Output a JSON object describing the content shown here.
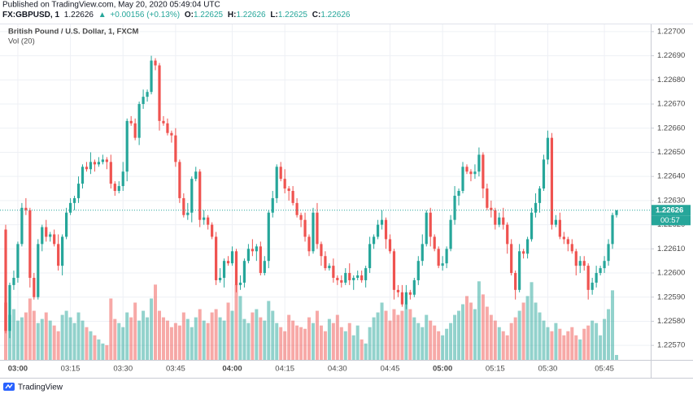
{
  "chart_data": {
    "type": "candlestick",
    "header": {
      "published": "Published on TradingView.com, May 20, 2020 05:49:04 UTC",
      "symbol": "FX:GBPUSD, 1",
      "last": "1.22626",
      "change": "+0.00156 (+0.13%)",
      "ohlc": [
        {
          "label": "O:",
          "value": "1.22625"
        },
        {
          "label": "H:",
          "value": "1.22626"
        },
        {
          "label": "L:",
          "value": "1.22625"
        },
        {
          "label": "C:",
          "value": "1.22626"
        }
      ]
    },
    "title": "British Pound / U.S. Dollar, 1, FXCM",
    "volume_title": "Vol (20)",
    "footer": "TradingView",
    "countdown": "00:57",
    "last_price": 1.22626,
    "up_color": "#26a69a",
    "down_color": "#ef5350",
    "grid": true,
    "ylim": [
      1.22564,
      1.22703
    ],
    "yticks": [
      {
        "value": 1.2257,
        "label": "1.22570"
      },
      {
        "value": 1.2258,
        "label": "1.22580"
      },
      {
        "value": 1.2259,
        "label": "1.22590"
      },
      {
        "value": 1.226,
        "label": "1.22600"
      },
      {
        "value": 1.2261,
        "label": "1.22610"
      },
      {
        "value": 1.2262,
        "label": "1.22620"
      },
      {
        "value": 1.2263,
        "label": "1.22630"
      },
      {
        "value": 1.2264,
        "label": "1.22640"
      },
      {
        "value": 1.2265,
        "label": "1.22650"
      },
      {
        "value": 1.2266,
        "label": "1.22660"
      },
      {
        "value": 1.2267,
        "label": "1.22670"
      },
      {
        "value": 1.2268,
        "label": "1.22680"
      },
      {
        "value": 1.2269,
        "label": "1.22690"
      },
      {
        "value": 1.227,
        "label": "1.22700"
      }
    ],
    "volume_lim": [
      0,
      410
    ],
    "categories": [
      null,
      null,
      null,
      "03:00",
      null,
      null,
      null,
      null,
      null,
      null,
      null,
      null,
      null,
      null,
      null,
      null,
      "03:15",
      null,
      null,
      null,
      null,
      null,
      null,
      null,
      null,
      null,
      null,
      null,
      null,
      "03:30",
      null,
      null,
      null,
      null,
      null,
      null,
      null,
      null,
      null,
      null,
      null,
      null,
      "03:45",
      null,
      null,
      null,
      null,
      null,
      null,
      null,
      null,
      null,
      null,
      null,
      null,
      null,
      "04:00",
      null,
      null,
      null,
      null,
      null,
      null,
      null,
      null,
      null,
      null,
      null,
      null,
      "04:15",
      null,
      null,
      null,
      null,
      null,
      null,
      null,
      null,
      null,
      null,
      null,
      null,
      "04:30",
      null,
      null,
      null,
      null,
      null,
      null,
      null,
      null,
      null,
      null,
      null,
      null,
      "04:45",
      null,
      null,
      null,
      null,
      null,
      null,
      null,
      null,
      null,
      null,
      null,
      null,
      "05:00",
      null,
      null,
      null,
      null,
      null,
      null,
      null,
      null,
      null,
      null,
      null,
      null,
      "05:15",
      null,
      null,
      null,
      null,
      null,
      null,
      null,
      null,
      null,
      null,
      null,
      null,
      "05:30",
      null,
      null,
      null,
      null,
      null,
      null,
      null,
      null,
      null,
      null,
      null,
      null,
      null,
      "05:45",
      null,
      null,
      null
    ],
    "open": [
      1.22618,
      1.22576,
      1.22595,
      1.22598,
      1.22612,
      1.22627,
      1.22626,
      1.22598,
      1.2259,
      1.22612,
      1.22619,
      1.22615,
      1.22616,
      1.22612,
      1.22603,
      1.22615,
      1.22625,
      1.22629,
      1.22631,
      1.22637,
      1.22644,
      1.22643,
      1.22646,
      1.22645,
      1.22646,
      1.22647,
      1.22646,
      1.22637,
      1.22634,
      1.22636,
      1.22642,
      1.22663,
      1.22662,
      1.22656,
      1.2267,
      1.22673,
      1.22675,
      1.22688,
      1.22686,
      1.22663,
      1.22662,
      1.22658,
      1.22657,
      1.22646,
      1.22631,
      1.22624,
      1.22625,
      1.22639,
      1.22642,
      1.22622,
      1.22623,
      1.2262,
      1.22615,
      1.22597,
      1.22598,
      1.22605,
      1.22604,
      1.22609,
      1.22595,
      1.22596,
      1.22605,
      1.2261,
      1.22609,
      1.22611,
      1.226,
      1.22605,
      1.22625,
      1.22631,
      1.22644,
      1.22639,
      1.22635,
      1.22634,
      1.22629,
      1.22624,
      1.22622,
      1.22615,
      1.22609,
      1.22625,
      1.22612,
      1.22607,
      1.22602,
      1.22603,
      1.22598,
      1.22597,
      1.22596,
      1.226,
      1.22597,
      1.22598,
      1.22599,
      1.22597,
      1.22602,
      1.22612,
      1.22615,
      1.2262,
      1.22622,
      1.22614,
      1.22609,
      1.22593,
      1.22592,
      1.22587,
      1.22592,
      1.22591,
      1.22597,
      1.22605,
      1.22612,
      1.22625,
      1.22615,
      1.2261,
      1.22603,
      1.22604,
      1.2261,
      1.22622,
      1.22632,
      1.22634,
      1.22644,
      1.22642,
      1.22641,
      1.22642,
      1.22649,
      1.22635,
      1.22627,
      1.22626,
      1.2262,
      1.22623,
      1.2262,
      1.22612,
      1.226,
      1.22593,
      1.22609,
      1.22608,
      1.22614,
      1.22625,
      1.22629,
      1.22635,
      1.22647,
      1.22656,
      1.2262,
      1.22622,
      1.22615,
      1.22614,
      1.22612,
      1.22609,
      1.22603,
      1.22605,
      1.22603,
      1.22593,
      1.22596,
      1.226,
      1.22602,
      1.22605,
      1.22612,
      1.22624
    ],
    "high": [
      1.2262,
      1.22596,
      1.22601,
      1.22613,
      1.22629,
      1.22631,
      1.22627,
      1.226,
      1.22614,
      1.2262,
      1.22622,
      1.22617,
      1.22618,
      1.22616,
      1.22616,
      1.22627,
      1.22631,
      1.22632,
      1.2264,
      1.22645,
      1.22646,
      1.2265,
      1.22647,
      1.22648,
      1.22649,
      1.22648,
      1.22649,
      1.22638,
      1.22638,
      1.22646,
      1.22664,
      1.22665,
      1.22664,
      1.22671,
      1.22676,
      1.22676,
      1.2269,
      1.22689,
      1.22687,
      1.22665,
      1.22664,
      1.22659,
      1.2266,
      1.22647,
      1.22633,
      1.22629,
      1.2264,
      1.22644,
      1.22643,
      1.22626,
      1.22624,
      1.22621,
      1.22617,
      1.22602,
      1.22606,
      1.22607,
      1.22611,
      1.2261,
      1.22599,
      1.22606,
      1.22612,
      1.22614,
      1.22612,
      1.22613,
      1.22607,
      1.22626,
      1.22634,
      1.22645,
      1.22646,
      1.22643,
      1.22636,
      1.22636,
      1.22631,
      1.22625,
      1.22625,
      1.22616,
      1.22627,
      1.22629,
      1.22613,
      1.22609,
      1.22604,
      1.22606,
      1.22599,
      1.22599,
      1.22602,
      1.22604,
      1.22599,
      1.22601,
      1.22601,
      1.22603,
      1.22615,
      1.22616,
      1.22622,
      1.22626,
      1.22623,
      1.22616,
      1.2261,
      1.22595,
      1.22595,
      1.22595,
      1.22593,
      1.22598,
      1.22607,
      1.22616,
      1.22626,
      1.22627,
      1.22616,
      1.22611,
      1.22607,
      1.22611,
      1.22624,
      1.22636,
      1.22635,
      1.22646,
      1.22645,
      1.22643,
      1.22645,
      1.22652,
      1.2265,
      1.22637,
      1.2263,
      1.22627,
      1.22625,
      1.22627,
      1.22621,
      1.22614,
      1.22601,
      1.22612,
      1.2261,
      1.22615,
      1.22627,
      1.22633,
      1.22636,
      1.22649,
      1.22659,
      1.22658,
      1.22624,
      1.22625,
      1.22617,
      1.22615,
      1.22614,
      1.2261,
      1.22607,
      1.22607,
      1.22604,
      1.22598,
      1.22603,
      1.22603,
      1.22607,
      1.22614,
      1.22625,
      1.22626
    ],
    "low": [
      1.22575,
      1.22573,
      1.22593,
      1.22596,
      1.22611,
      1.22624,
      1.22594,
      1.22589,
      1.22589,
      1.22609,
      1.22613,
      1.22613,
      1.22611,
      1.22601,
      1.22599,
      1.22614,
      1.22624,
      1.22626,
      1.22629,
      1.22635,
      1.22642,
      1.22641,
      1.22642,
      1.22644,
      1.22645,
      1.22643,
      1.22635,
      1.22632,
      1.22633,
      1.22634,
      1.22638,
      1.22661,
      1.22655,
      1.22653,
      1.22668,
      1.22671,
      1.22674,
      1.22684,
      1.22659,
      1.22661,
      1.22657,
      1.22654,
      1.22644,
      1.22629,
      1.22623,
      1.22622,
      1.22621,
      1.22638,
      1.22619,
      1.2262,
      1.22618,
      1.22614,
      1.22595,
      1.22596,
      1.22594,
      1.22603,
      1.22603,
      1.22592,
      1.22593,
      1.22594,
      1.22604,
      1.22607,
      1.22605,
      1.22599,
      1.22599,
      1.22602,
      1.22623,
      1.22629,
      1.22638,
      1.22633,
      1.2263,
      1.22628,
      1.22623,
      1.22619,
      1.22613,
      1.22607,
      1.22608,
      1.2261,
      1.22603,
      1.22601,
      1.22601,
      1.22596,
      1.22595,
      1.22594,
      1.22595,
      1.22595,
      1.22593,
      1.22597,
      1.22596,
      1.22594,
      1.226,
      1.2261,
      1.22614,
      1.22618,
      1.2261,
      1.22608,
      1.22589,
      1.2259,
      1.22586,
      1.22585,
      1.22589,
      1.2259,
      1.22595,
      1.22603,
      1.22611,
      1.22611,
      1.22609,
      1.22602,
      1.22601,
      1.22602,
      1.22609,
      1.2262,
      1.22628,
      1.22633,
      1.22641,
      1.22638,
      1.22639,
      1.2264,
      1.22631,
      1.22626,
      1.22623,
      1.22618,
      1.22619,
      1.22618,
      1.22608,
      1.22599,
      1.22589,
      1.22592,
      1.22606,
      1.22606,
      1.22613,
      1.22623,
      1.22625,
      1.22634,
      1.22645,
      1.22618,
      1.22619,
      1.22614,
      1.22612,
      1.22609,
      1.22608,
      1.22599,
      1.226,
      1.22601,
      1.22589,
      1.22591,
      1.22594,
      1.22599,
      1.226,
      1.22603,
      1.2261,
      1.22623
    ],
    "close": [
      1.22576,
      1.22595,
      1.22598,
      1.22612,
      1.22627,
      1.22626,
      1.22598,
      1.2259,
      1.22612,
      1.22619,
      1.22615,
      1.22616,
      1.22612,
      1.22603,
      1.22615,
      1.22625,
      1.22629,
      1.22631,
      1.22637,
      1.22644,
      1.22643,
      1.22646,
      1.22645,
      1.22646,
      1.22647,
      1.22646,
      1.22637,
      1.22634,
      1.22636,
      1.22642,
      1.22663,
      1.22662,
      1.22656,
      1.2267,
      1.22673,
      1.22675,
      1.22688,
      1.22686,
      1.22663,
      1.22662,
      1.22658,
      1.22657,
      1.22646,
      1.22631,
      1.22624,
      1.22625,
      1.22639,
      1.22642,
      1.22622,
      1.22623,
      1.2262,
      1.22615,
      1.22597,
      1.22598,
      1.22605,
      1.22604,
      1.22609,
      1.22595,
      1.22596,
      1.22605,
      1.2261,
      1.22609,
      1.22611,
      1.226,
      1.22605,
      1.22625,
      1.22631,
      1.22644,
      1.22639,
      1.22635,
      1.22634,
      1.22629,
      1.22624,
      1.22622,
      1.22615,
      1.22609,
      1.22625,
      1.22612,
      1.22607,
      1.22602,
      1.22603,
      1.22598,
      1.22597,
      1.22596,
      1.226,
      1.22597,
      1.22598,
      1.22599,
      1.22597,
      1.22602,
      1.22612,
      1.22615,
      1.2262,
      1.22622,
      1.22614,
      1.22609,
      1.22593,
      1.22592,
      1.22587,
      1.22592,
      1.22591,
      1.22597,
      1.22605,
      1.22612,
      1.22625,
      1.22615,
      1.2261,
      1.22603,
      1.22604,
      1.2261,
      1.22622,
      1.22632,
      1.22634,
      1.22644,
      1.22642,
      1.22641,
      1.22642,
      1.22649,
      1.22635,
      1.22627,
      1.22626,
      1.2262,
      1.22623,
      1.2262,
      1.22612,
      1.226,
      1.22593,
      1.22609,
      1.22608,
      1.22614,
      1.22625,
      1.22629,
      1.22635,
      1.22647,
      1.22656,
      1.2262,
      1.22622,
      1.22615,
      1.22614,
      1.22612,
      1.22609,
      1.22603,
      1.22605,
      1.22603,
      1.22593,
      1.22596,
      1.226,
      1.22602,
      1.22605,
      1.22612,
      1.22624,
      1.22626
    ],
    "volume": [
      70,
      55,
      62,
      48,
      52,
      58,
      75,
      60,
      45,
      50,
      58,
      48,
      42,
      35,
      55,
      60,
      52,
      45,
      58,
      48,
      40,
      35,
      30,
      25,
      20,
      18,
      75,
      50,
      45,
      40,
      58,
      52,
      70,
      48,
      60,
      52,
      75,
      92,
      60,
      52,
      48,
      40,
      45,
      42,
      58,
      50,
      40,
      52,
      62,
      48,
      45,
      58,
      62,
      52,
      48,
      70,
      60,
      92,
      78,
      50,
      45,
      58,
      62,
      52,
      48,
      72,
      60,
      45,
      40,
      35,
      55,
      48,
      42,
      40,
      38,
      52,
      45,
      60,
      42,
      35,
      50,
      45,
      55,
      40,
      35,
      45,
      30,
      42,
      25,
      20,
      40,
      52,
      58,
      70,
      60,
      48,
      62,
      55,
      60,
      68,
      62,
      52,
      45,
      40,
      55,
      48,
      42,
      35,
      30,
      38,
      45,
      55,
      60,
      68,
      78,
      70,
      62,
      96,
      80,
      65,
      55,
      48,
      40,
      35,
      30,
      45,
      52,
      60,
      70,
      78,
      95,
      70,
      58,
      48,
      40,
      35,
      45,
      38,
      30,
      35,
      40,
      30,
      25,
      38,
      42,
      48,
      45,
      30,
      50,
      62,
      85,
      6
    ]
  }
}
